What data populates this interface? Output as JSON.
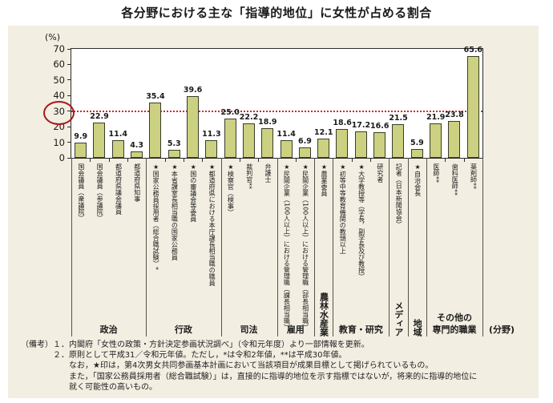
{
  "chart_data": {
    "type": "bar",
    "title": "各分野における主な「指導的地位」に女性が占める割合",
    "y_axis_unit": "(%)",
    "x_axis_note": "(分野)",
    "ylim": [
      0,
      70
    ],
    "yticks": [
      0,
      10,
      20,
      30,
      40,
      50,
      60,
      70
    ],
    "reference_line": {
      "value": 30,
      "style": "red-dotted",
      "annotation": "red-circle-around-30-tick"
    },
    "groups": [
      {
        "label": "政治",
        "orientation": "h",
        "bars": [
          {
            "label": "国会議員（衆議院）",
            "value": 9.9
          },
          {
            "label": "国会議員（参議院）",
            "value": 22.9
          },
          {
            "label": "都道府県議会議員",
            "value": 11.4
          },
          {
            "label": "都道府県知事",
            "value": 4.3
          }
        ]
      },
      {
        "label": "行政",
        "orientation": "h",
        "bars": [
          {
            "label": "★国家公務員採用者（総合職試験）*",
            "value": 35.4
          },
          {
            "label": "★本省課室長相当職の国家公務員",
            "value": 5.3
          },
          {
            "label": "★国の審議会等委員",
            "value": 39.6
          },
          {
            "label": "★都道府県における本庁課長相当職の職員",
            "value": 11.3
          }
        ]
      },
      {
        "label": "司法",
        "orientation": "h",
        "bars": [
          {
            "label": "★検察官（検事）",
            "value": 25.0
          },
          {
            "label": "裁判官**",
            "value": 22.2
          },
          {
            "label": "弁護士",
            "value": 18.9
          }
        ]
      },
      {
        "label": "雇用",
        "orientation": "h",
        "bars": [
          {
            "label": "★民間企業（100人以上）における管理職（課長相当職）",
            "value": 11.4
          },
          {
            "label": "★民間企業（100人以上）における管理職（部長相当職）",
            "value": 6.9
          }
        ]
      },
      {
        "label": "農林水産業",
        "orientation": "v",
        "bars": [
          {
            "label": "★農業委員",
            "value": 12.1
          }
        ]
      },
      {
        "label": "教育・研究",
        "orientation": "h",
        "bars": [
          {
            "label": "★初等中等教育機関の教頭以上",
            "value": 18.6
          },
          {
            "label": "★大学教授等（学長，副学長及び教授）",
            "value": 17.2
          },
          {
            "label": "研究者",
            "value": 16.6
          }
        ]
      },
      {
        "label": "メディア",
        "orientation": "v",
        "bars": [
          {
            "label": "記者（日本新聞協会）",
            "value": 21.5
          }
        ]
      },
      {
        "label": "地域",
        "orientation": "v",
        "bars": [
          {
            "label": "★自治会長",
            "value": 5.9
          }
        ]
      },
      {
        "label": "その他の専門的職業",
        "orientation": "h2",
        "lines": [
          "その他の",
          "専門的職業"
        ],
        "bars": [
          {
            "label": "医師**",
            "value": 21.9
          },
          {
            "label": "歯科医師**",
            "value": 23.8
          },
          {
            "label": "薬剤師**",
            "value": 65.6
          }
        ]
      }
    ]
  },
  "notes": {
    "prefix": "（備考）",
    "lines": [
      "１．内閣府「女性の政策・方針決定参画状況調べ」（令和元年度）より一部情報を更新。",
      "２．原則として平成31／令和元年値。ただし，*は令和2年値，**は平成30年値。",
      "なお，★印は，第4次男女共同参画基本計画において当該項目が成果目標として掲げられているもの。",
      "また，「国家公務員採用者（総合職試験）」は，直接的に指導的地位を示す指標ではないが，将来的に指導的地位に",
      "就く可能性の高いもの。"
    ]
  },
  "colors": {
    "panel_bg": "#f2eee1",
    "bar_fill": "#cbd180",
    "bar_border": "#3c3c2a",
    "reference_red": "#cf2533",
    "circle_red": "#a6171c",
    "text": "#1a1a1a"
  }
}
